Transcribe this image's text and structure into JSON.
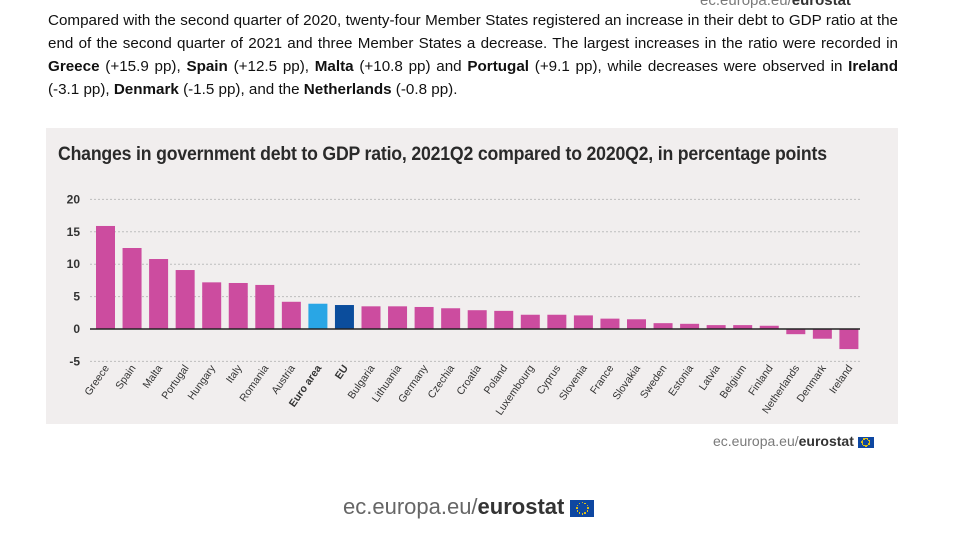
{
  "intro": {
    "p1": "Compared with the second quarter of 2020, twenty-four Member States registered an increase in their debt to GDP ratio at the end of the second quarter of 2021 and three Member States a decrease. The largest increases in the ratio were recorded in ",
    "greece": "Greece",
    "p2": " (+15.9 pp), ",
    "spain": "Spain",
    "p3": " (+12.5 pp), ",
    "malta": "Malta",
    "p4": " (+10.8 pp) and ",
    "portugal": "Portugal",
    "p5": " (+9.1 pp), while decreases were observed in ",
    "ireland": "Ireland",
    "p6": " (-3.1 pp), ",
    "denmark": "Denmark",
    "p7": " (-1.5 pp), and the ",
    "netherlands": "Netherlands",
    "p8": " (-0.8 pp)."
  },
  "credit": {
    "domain": "ec.europa.eu/",
    "brand": "eurostat"
  },
  "footer": {
    "domain": "ec.europa.eu/",
    "brand": "eurostat"
  },
  "top_cut": {
    "domain": "ec.europa.eu/",
    "brand": "eurostat"
  },
  "colors": {
    "member": "#cc4c9f",
    "euro_area": "#29a6e5",
    "eu": "#0b4d9c",
    "panel": "#f1eeee"
  },
  "chart_data": {
    "type": "bar",
    "title": "Changes in government debt to GDP ratio, 2021Q2 compared to 2020Q2, in percentage points",
    "xlabel": "",
    "ylabel": "",
    "ylim": [
      -5,
      20
    ],
    "yticks": [
      "20",
      "15",
      "10",
      "5",
      "0",
      "-5"
    ],
    "grid": true,
    "categories": [
      "Greece",
      "Spain",
      "Malta",
      "Portugal",
      "Hungary",
      "Italy",
      "Romania",
      "Austria",
      "Euro area",
      "EU",
      "Bulgaria",
      "Lithuania",
      "Germany",
      "Czechia",
      "Croatia",
      "Poland",
      "Luxembourg",
      "Cyprus",
      "Slovenia",
      "France",
      "Slovakia",
      "Sweden",
      "Estonia",
      "Latvia",
      "Belgium",
      "Finland",
      "Netherlands",
      "Denmark",
      "Ireland"
    ],
    "values": [
      15.9,
      12.5,
      10.8,
      9.1,
      7.2,
      7.1,
      6.8,
      4.2,
      3.9,
      3.7,
      3.5,
      3.5,
      3.4,
      3.2,
      2.9,
      2.8,
      2.2,
      2.2,
      2.1,
      1.6,
      1.5,
      0.9,
      0.8,
      0.6,
      0.6,
      0.5,
      -0.8,
      -1.5,
      -3.1
    ],
    "aggregates": [
      "Euro area",
      "EU"
    ]
  }
}
